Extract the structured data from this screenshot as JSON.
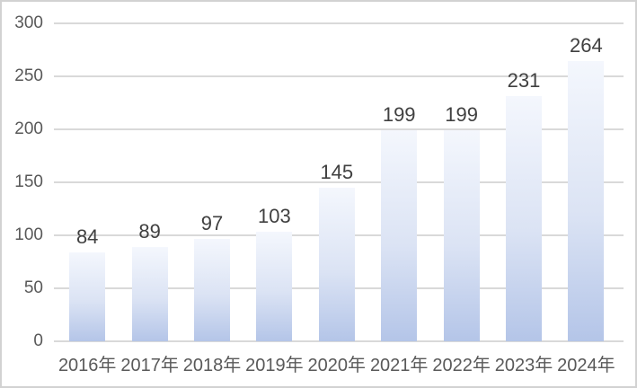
{
  "chart_data": {
    "type": "bar",
    "title": "",
    "xlabel": "",
    "ylabel": "",
    "categories": [
      "2016年",
      "2017年",
      "2018年",
      "2019年",
      "2020年",
      "2021年",
      "2022年",
      "2023年",
      "2024年"
    ],
    "values": [
      84,
      89,
      97,
      103,
      145,
      199,
      199,
      231,
      264
    ],
    "data_labels_shown": true,
    "ylim": [
      0,
      300
    ],
    "yticks": [
      0,
      50,
      100,
      150,
      200,
      250,
      300
    ],
    "grid": true,
    "legend_position": "none",
    "colors": {
      "background": "#ffffff",
      "border": "#d2d2d2",
      "gridline": "#d9d9d9",
      "axis_line": "#d9d9d9",
      "axis_tick_label": "#595959",
      "data_label": "#404040",
      "bar_gradient_top": "#f4f7fd",
      "bar_gradient_mid": "#dbe3f4",
      "bar_gradient_bottom": "#b4c5e8"
    }
  }
}
